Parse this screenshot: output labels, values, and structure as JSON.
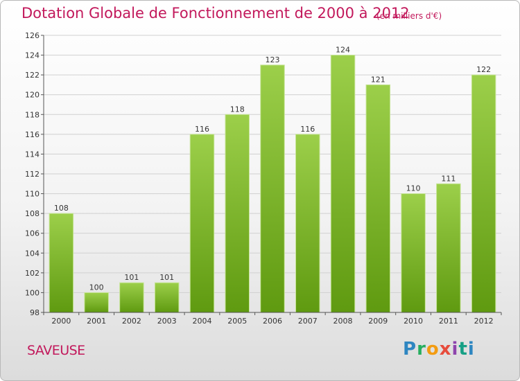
{
  "header": {
    "title": "Dotation Globale de Fonctionnement de 2000 à 2012",
    "subtitle": "(en milliers d'€)"
  },
  "footer": {
    "commune": "SAVEUSE",
    "logo_text": "Proxiti"
  },
  "colors": {
    "title": "#c2185b",
    "bar_top": "#9ccf4a",
    "bar_bottom": "#5f9a10",
    "grid": "#d0d0d0"
  },
  "chart_data": {
    "type": "bar",
    "title": "Dotation Globale de Fonctionnement de 2000 à 2012",
    "subtitle": "(en milliers d'€)",
    "xlabel": "",
    "ylabel": "",
    "categories": [
      "2000",
      "2001",
      "2002",
      "2003",
      "2004",
      "2005",
      "2006",
      "2007",
      "2008",
      "2009",
      "2010",
      "2011",
      "2012"
    ],
    "values": [
      108,
      100,
      101,
      101,
      116,
      118,
      123,
      116,
      124,
      121,
      110,
      111,
      122
    ],
    "ylim": [
      98,
      126
    ],
    "yticks": [
      98,
      100,
      102,
      104,
      106,
      108,
      110,
      112,
      114,
      116,
      118,
      120,
      122,
      124,
      126
    ],
    "grid": true,
    "data_labels": true
  }
}
